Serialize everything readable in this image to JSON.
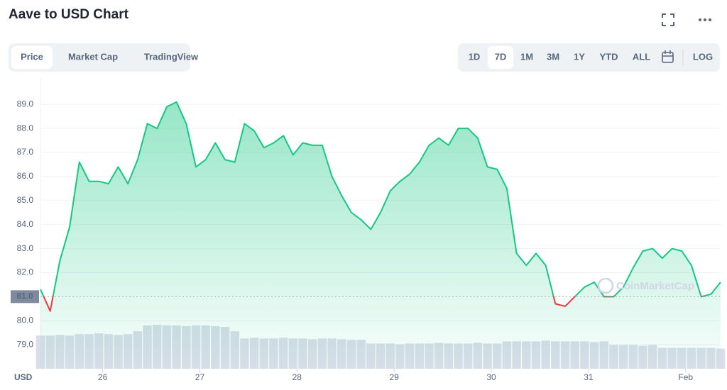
{
  "header": {
    "title": "Aave to USD Chart"
  },
  "toolbar": {
    "tabs": [
      "Price",
      "Market Cap",
      "TradingView"
    ],
    "active_tab": "Price",
    "ranges": [
      "1D",
      "7D",
      "1M",
      "3M",
      "1Y",
      "YTD",
      "ALL"
    ],
    "active_range": "7D",
    "log": "LOG"
  },
  "chart_data": {
    "type": "line",
    "y_axis_label": "USD",
    "watermark": "CoinMarketCap",
    "xlim": [
      0,
      70
    ],
    "xticks": [
      {
        "value": 6.4,
        "label": "26"
      },
      {
        "value": 16.4,
        "label": "27"
      },
      {
        "value": 26.4,
        "label": "28"
      },
      {
        "value": 36.4,
        "label": "29"
      },
      {
        "value": 46.4,
        "label": "30"
      },
      {
        "value": 56.4,
        "label": "31"
      },
      {
        "value": 66.4,
        "label": "Feb"
      }
    ],
    "ylim": [
      78.0,
      90.1
    ],
    "yticks": [
      {
        "value": 79,
        "label": "79.0"
      },
      {
        "value": 80,
        "label": "80.0"
      },
      {
        "value": 82,
        "label": "82.0"
      },
      {
        "value": 83,
        "label": "83.0"
      },
      {
        "value": 84,
        "label": "84.0"
      },
      {
        "value": 85,
        "label": "85.0"
      },
      {
        "value": 86,
        "label": "86.0"
      },
      {
        "value": 87,
        "label": "87.0"
      },
      {
        "value": 88,
        "label": "88.0"
      },
      {
        "value": 89,
        "label": "89.0"
      }
    ],
    "baseline": {
      "value": 81,
      "label": "81.0"
    },
    "grid": true,
    "up_color": "#16c784",
    "down_color": "#ea3943",
    "volume_color": "#cfd6e4",
    "series": [
      {
        "name": "Price",
        "values": [
          81.3,
          80.4,
          82.5,
          83.9,
          86.6,
          85.8,
          85.8,
          85.7,
          86.4,
          85.7,
          86.7,
          88.2,
          88.0,
          88.9,
          89.1,
          88.2,
          86.4,
          86.7,
          87.4,
          86.7,
          86.6,
          88.2,
          87.9,
          87.2,
          87.4,
          87.7,
          86.9,
          87.4,
          87.3,
          87.3,
          86.0,
          85.2,
          84.5,
          84.2,
          83.8,
          84.5,
          85.4,
          85.8,
          86.1,
          86.6,
          87.3,
          87.6,
          87.3,
          88.0,
          88.0,
          87.6,
          86.4,
          86.3,
          85.5,
          82.8,
          82.3,
          82.8,
          82.3,
          80.7,
          80.6,
          81.0,
          81.4,
          81.6,
          81.0,
          81.0,
          81.4,
          82.2,
          82.9,
          83.0,
          82.6,
          83.0,
          82.9,
          82.3,
          81.0,
          81.1,
          81.6
        ]
      },
      {
        "name": "Volume",
        "values": [
          46,
          46,
          47,
          46,
          48,
          48,
          49,
          48,
          47,
          48,
          52,
          60,
          61,
          60,
          60,
          59,
          60,
          60,
          59,
          58,
          52,
          42,
          43,
          42,
          42,
          43,
          42,
          42,
          41,
          42,
          42,
          41,
          40,
          40,
          35,
          35,
          35,
          34,
          35,
          35,
          35,
          36,
          35,
          35,
          35,
          36,
          35,
          35,
          38,
          38,
          38,
          38,
          39,
          38,
          38,
          38,
          38,
          37,
          38,
          33,
          33,
          33,
          32,
          33,
          29,
          29,
          29,
          29,
          29,
          29,
          28
        ]
      }
    ]
  }
}
